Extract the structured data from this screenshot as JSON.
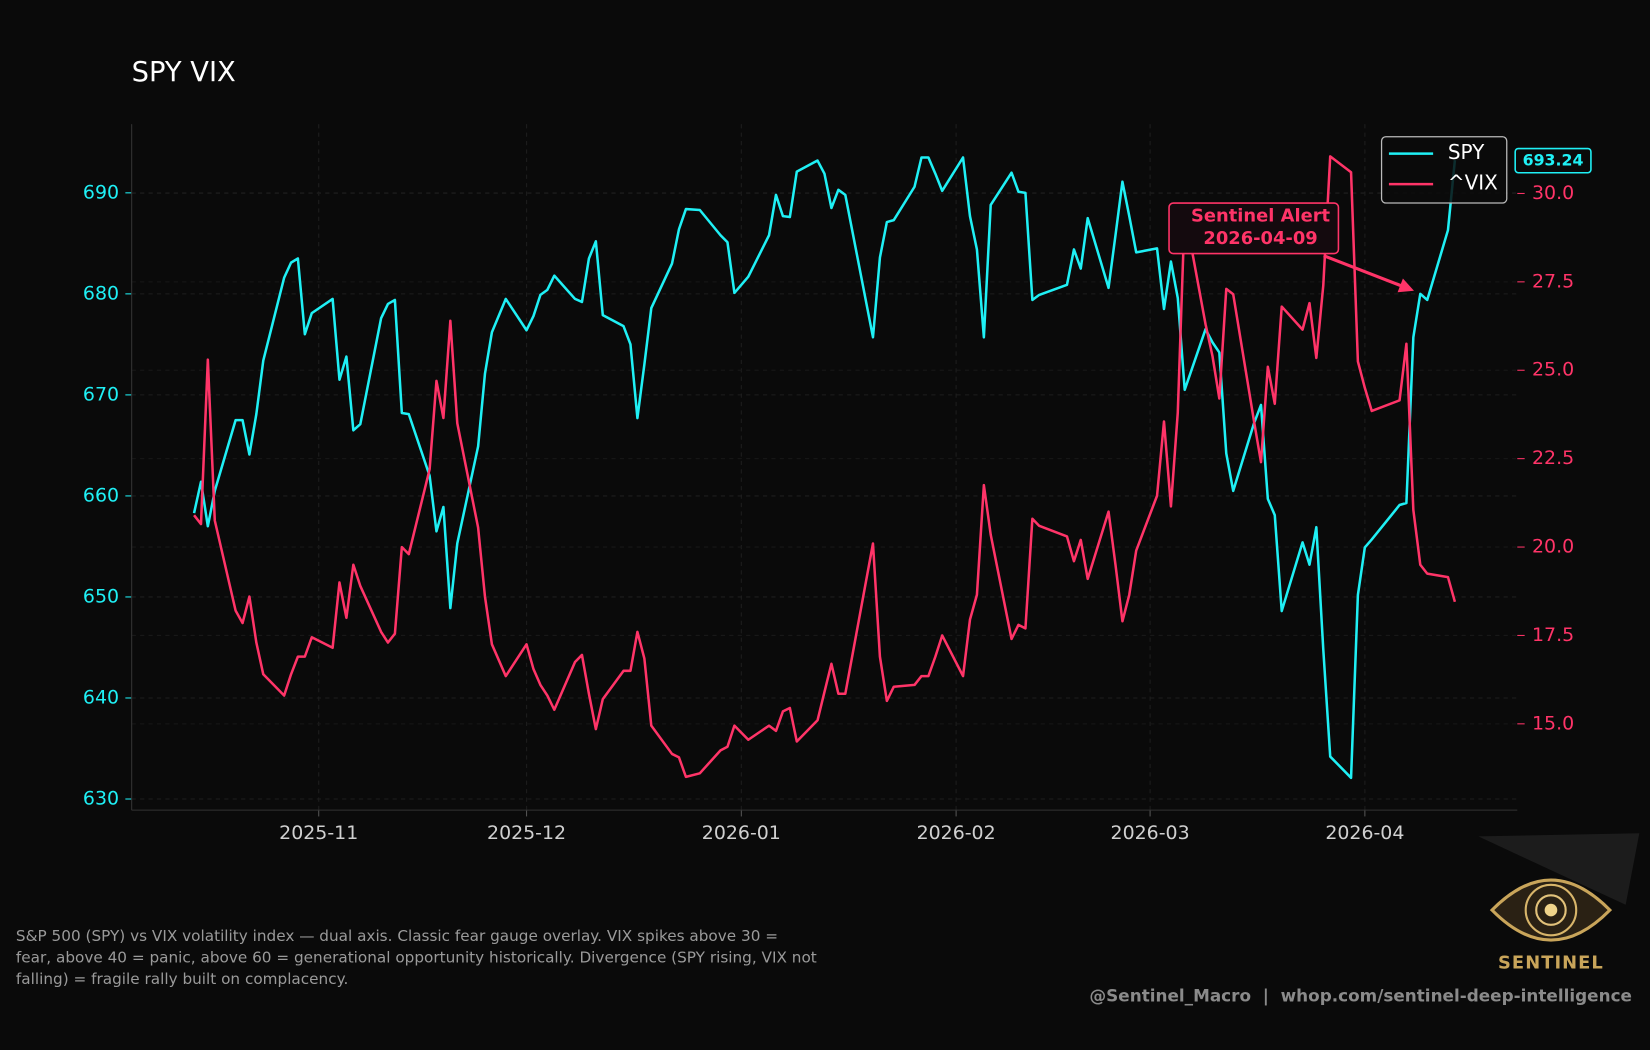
{
  "chart_data": {
    "type": "line",
    "title": "SPY VIX",
    "x": [
      "2025-10-14",
      "2025-10-15",
      "2025-10-16",
      "2025-10-17",
      "2025-10-20",
      "2025-10-21",
      "2025-10-22",
      "2025-10-23",
      "2025-10-24",
      "2025-10-27",
      "2025-10-28",
      "2025-10-29",
      "2025-10-30",
      "2025-10-31",
      "2025-11-03",
      "2025-11-04",
      "2025-11-05",
      "2025-11-06",
      "2025-11-07",
      "2025-11-10",
      "2025-11-11",
      "2025-11-12",
      "2025-11-13",
      "2025-11-14",
      "2025-11-17",
      "2025-11-18",
      "2025-11-19",
      "2025-11-20",
      "2025-11-21",
      "2025-11-24",
      "2025-11-25",
      "2025-11-26",
      "2025-11-28",
      "2025-12-01",
      "2025-12-02",
      "2025-12-03",
      "2025-12-04",
      "2025-12-05",
      "2025-12-08",
      "2025-12-09",
      "2025-12-10",
      "2025-12-11",
      "2025-12-12",
      "2025-12-15",
      "2025-12-16",
      "2025-12-17",
      "2025-12-18",
      "2025-12-19",
      "2025-12-22",
      "2025-12-23",
      "2025-12-24",
      "2025-12-26",
      "2025-12-29",
      "2025-12-30",
      "2025-12-31",
      "2026-01-02",
      "2026-01-05",
      "2026-01-06",
      "2026-01-07",
      "2026-01-08",
      "2026-01-09",
      "2026-01-12",
      "2026-01-13",
      "2026-01-14",
      "2026-01-15",
      "2026-01-16",
      "2026-01-20",
      "2026-01-21",
      "2026-01-22",
      "2026-01-23",
      "2026-01-26",
      "2026-01-27",
      "2026-01-28",
      "2026-01-29",
      "2026-01-30",
      "2026-02-02",
      "2026-02-03",
      "2026-02-04",
      "2026-02-05",
      "2026-02-06",
      "2026-02-09",
      "2026-02-10",
      "2026-02-11",
      "2026-02-12",
      "2026-02-13",
      "2026-02-17",
      "2026-02-18",
      "2026-02-19",
      "2026-02-20",
      "2026-02-23",
      "2026-02-24",
      "2026-02-25",
      "2026-02-26",
      "2026-02-27",
      "2026-03-02",
      "2026-03-03",
      "2026-03-04",
      "2026-03-05",
      "2026-03-06",
      "2026-03-09",
      "2026-03-10",
      "2026-03-11",
      "2026-03-12",
      "2026-03-13",
      "2026-03-16",
      "2026-03-17",
      "2026-03-18",
      "2026-03-19",
      "2026-03-20",
      "2026-03-23",
      "2026-03-24",
      "2026-03-25",
      "2026-03-26",
      "2026-03-27",
      "2026-03-30",
      "2026-03-31",
      "2026-04-01",
      "2026-04-02",
      "2026-04-06",
      "2026-04-07",
      "2026-04-08",
      "2026-04-09",
      "2026-04-10",
      "2026-04-13",
      "2026-04-14"
    ],
    "series": [
      {
        "name": "SPY",
        "color": "#1ff0f5",
        "axis": "y",
        "values": [
          658.3,
          661.4,
          657.0,
          660.5,
          667.5,
          667.5,
          664.1,
          668.1,
          673.4,
          681.6,
          683.1,
          683.5,
          676.0,
          678.1,
          679.5,
          671.5,
          673.8,
          666.5,
          667.1,
          677.6,
          679.0,
          679.4,
          668.2,
          668.1,
          662.0,
          656.5,
          658.9,
          648.9,
          655.3,
          664.9,
          672.1,
          676.2,
          679.5,
          676.4,
          677.8,
          679.9,
          680.4,
          681.8,
          679.5,
          679.2,
          683.5,
          685.2,
          677.9,
          676.8,
          675.0,
          667.7,
          673.0,
          678.6,
          683.0,
          686.4,
          688.4,
          688.3,
          685.8,
          685.1,
          680.1,
          681.7,
          685.8,
          689.8,
          687.7,
          687.6,
          692.1,
          693.2,
          691.9,
          688.5,
          690.3,
          689.8,
          675.7,
          683.6,
          687.1,
          687.3,
          690.6,
          693.5,
          693.5,
          691.9,
          690.2,
          693.5,
          687.7,
          684.4,
          675.7,
          688.8,
          692.0,
          690.1,
          690.0,
          679.4,
          679.9,
          680.9,
          684.4,
          682.5,
          687.5,
          680.6,
          685.8,
          691.1,
          687.7,
          684.1,
          684.5,
          678.5,
          683.2,
          679.6,
          670.5,
          676.5,
          675.2,
          674.2,
          664.2,
          660.5,
          667.2,
          669.0,
          659.7,
          658.1,
          648.6,
          655.4,
          653.2,
          656.9,
          644.8,
          634.2,
          632.1,
          650.2,
          654.9,
          655.7,
          659.1,
          659.3,
          675.7,
          680.0,
          679.4,
          686.3,
          693.24
        ]
      },
      {
        "name": "^VIX",
        "color": "#ff3468",
        "axis": "y2",
        "values": [
          20.9,
          20.65,
          25.3,
          20.75,
          18.2,
          17.85,
          18.6,
          17.3,
          16.4,
          15.8,
          16.4,
          16.9,
          16.9,
          17.45,
          17.15,
          19.0,
          18.0,
          19.5,
          18.9,
          17.6,
          17.3,
          17.55,
          20.0,
          19.8,
          22.2,
          24.7,
          23.65,
          26.4,
          23.5,
          20.55,
          18.6,
          17.25,
          16.35,
          17.25,
          16.55,
          16.1,
          15.8,
          15.4,
          16.75,
          16.95,
          15.85,
          14.85,
          15.7,
          16.5,
          16.5,
          17.6,
          16.85,
          14.95,
          14.15,
          14.05,
          13.5,
          13.6,
          14.25,
          14.35,
          14.95,
          14.55,
          14.95,
          14.8,
          15.35,
          15.45,
          14.5,
          15.1,
          15.9,
          16.7,
          15.85,
          15.85,
          20.1,
          16.9,
          15.65,
          16.05,
          16.1,
          16.35,
          16.35,
          16.9,
          17.5,
          16.35,
          17.95,
          18.65,
          21.75,
          20.35,
          17.4,
          17.8,
          17.7,
          20.8,
          20.6,
          20.3,
          19.6,
          20.2,
          19.1,
          21.0,
          19.5,
          17.9,
          18.65,
          19.9,
          21.45,
          23.55,
          21.15,
          23.8,
          29.5,
          26.3,
          25.4,
          24.2,
          27.3,
          27.15,
          23.55,
          22.4,
          25.1,
          24.05,
          26.8,
          26.15,
          26.9,
          25.35,
          27.4,
          31.05,
          30.6,
          25.25,
          24.5,
          23.85,
          24.15,
          25.75,
          21.05,
          19.5,
          19.25,
          19.15,
          18.45
        ]
      }
    ],
    "xlim": [
      "2025-10-05",
      "2026-04-23"
    ],
    "xticks": [
      {
        "value": "2025-11-01",
        "label": "2025-11"
      },
      {
        "value": "2025-12-01",
        "label": "2025-12"
      },
      {
        "value": "2026-01-01",
        "label": "2026-01"
      },
      {
        "value": "2026-02-01",
        "label": "2026-02"
      },
      {
        "value": "2026-03-01",
        "label": "2026-03"
      },
      {
        "value": "2026-04-01",
        "label": "2026-04"
      }
    ],
    "ylim": [
      628.9,
      696.8
    ],
    "yticks": [
      630,
      640,
      650,
      660,
      670,
      680,
      690
    ],
    "y2lim": [
      12.56,
      31.96
    ],
    "y2ticks": [
      {
        "value": 15,
        "label": "15.0"
      },
      17.5,
      {
        "value": 20,
        "label": "20.0"
      },
      22.5,
      {
        "value": 25,
        "label": "25.0"
      },
      27.5,
      {
        "value": 30,
        "label": "30.0"
      }
    ],
    "grid": true,
    "legend": "upper right",
    "last_value_label": true,
    "annotation": {
      "lines": [
        "Sentinel Alert",
        "2026-04-09"
      ],
      "x": "2026-04-09",
      "series": 0
    },
    "footnote": [
      "S&P 500 (SPY) vs VIX volatility index — dual axis. Classic fear gauge overlay. VIX spikes above 30 =",
      "fear, above 40 = panic, above 60 = generational opportunity historically. Divergence (SPY rising, VIX not",
      "falling) = fragile rally built on complacency."
    ],
    "credit": "@Sentinel_Macro  |  whop.com/sentinel-deep-intelligence",
    "logo_text": "SENTINEL"
  }
}
